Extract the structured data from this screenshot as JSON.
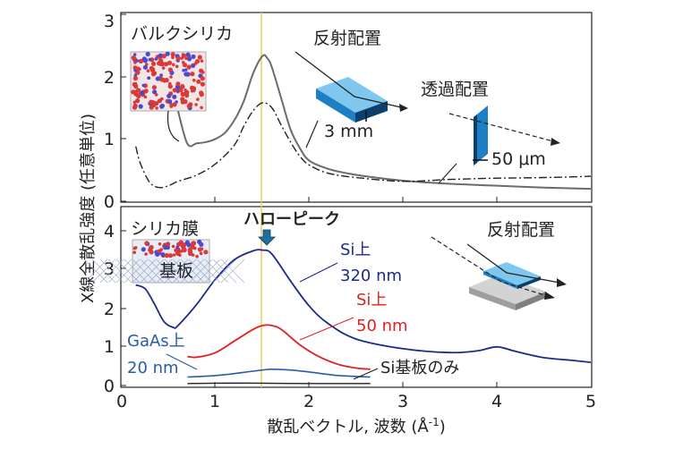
{
  "chart_data": [
    {
      "type": "line",
      "panel": "top",
      "ylim": [
        0,
        3
      ],
      "xlim": [
        0,
        5
      ],
      "yticks": [
        "0",
        "1",
        "2",
        "3"
      ],
      "grid": false,
      "series": [
        {
          "name": "バルクシリカ",
          "color": "#6b6b6b",
          "style": "solid",
          "x": [
            0.6,
            0.7,
            0.8,
            0.9,
            1.0,
            1.1,
            1.2,
            1.3,
            1.4,
            1.5,
            1.55,
            1.6,
            1.7,
            1.8,
            1.9,
            2.0,
            2.2,
            2.4,
            2.6,
            3.0,
            3.5,
            4.0,
            4.5,
            5.0
          ],
          "y": [
            1.45,
            0.92,
            0.93,
            0.95,
            1.0,
            1.1,
            1.3,
            1.6,
            2.05,
            2.33,
            2.3,
            2.15,
            1.65,
            1.15,
            0.85,
            0.65,
            0.52,
            0.45,
            0.4,
            0.33,
            0.28,
            0.25,
            0.22,
            0.2
          ]
        },
        {
          "name": "",
          "color": "#222222",
          "style": "dashdot",
          "x": [
            0.15,
            0.2,
            0.3,
            0.4,
            0.5,
            0.6,
            0.8,
            1.0,
            1.2,
            1.3,
            1.4,
            1.5,
            1.6,
            1.7,
            1.8,
            1.9,
            2.0,
            2.2,
            2.5,
            3.0,
            3.5,
            4.0,
            4.5,
            5.0
          ],
          "y": [
            0.88,
            0.6,
            0.3,
            0.22,
            0.25,
            0.32,
            0.42,
            0.6,
            0.9,
            1.2,
            1.45,
            1.58,
            1.5,
            1.22,
            0.95,
            0.72,
            0.58,
            0.45,
            0.38,
            0.32,
            0.35,
            0.37,
            0.38,
            0.4
          ]
        }
      ]
    },
    {
      "type": "line",
      "panel": "bottom",
      "ylim": [
        0,
        4.6
      ],
      "xlim": [
        0,
        5
      ],
      "yticks": [
        "0",
        "1",
        "2",
        "3",
        "4"
      ],
      "xticks": [
        "0",
        "1",
        "2",
        "3",
        "4",
        "5"
      ],
      "grid": false,
      "series": [
        {
          "name": "Si上 320 nm",
          "color": "#1c2a8c",
          "style": "solid",
          "x": [
            0.15,
            0.25,
            0.35,
            0.45,
            0.55,
            0.6,
            0.8,
            1.0,
            1.2,
            1.4,
            1.5,
            1.6,
            1.8,
            2.0,
            2.2,
            2.5,
            3.0,
            3.5,
            3.8,
            4.0,
            4.2,
            4.5,
            4.8,
            5.0
          ],
          "y": [
            2.6,
            2.5,
            2.1,
            1.65,
            1.5,
            1.55,
            2.1,
            2.75,
            3.25,
            3.48,
            3.5,
            3.4,
            2.7,
            2.05,
            1.6,
            1.2,
            0.95,
            0.85,
            0.9,
            1.0,
            0.88,
            0.72,
            0.65,
            0.6
          ]
        },
        {
          "name": "Si上 50 nm",
          "color": "#e02020",
          "style": "solid",
          "x": [
            0.7,
            0.8,
            1.0,
            1.2,
            1.4,
            1.5,
            1.6,
            1.7,
            1.9,
            2.1,
            2.3,
            2.5,
            2.65
          ],
          "y": [
            0.75,
            0.73,
            0.85,
            1.15,
            1.45,
            1.55,
            1.55,
            1.45,
            1.05,
            0.75,
            0.55,
            0.45,
            0.42
          ]
        },
        {
          "name": "GaAs上 20 nm",
          "color": "#2a5aa8",
          "style": "solid",
          "x": [
            0.7,
            0.9,
            1.1,
            1.3,
            1.5,
            1.6,
            1.8,
            2.0,
            2.3,
            2.65
          ],
          "y": [
            0.22,
            0.24,
            0.28,
            0.34,
            0.4,
            0.42,
            0.4,
            0.35,
            0.26,
            0.22
          ]
        },
        {
          "name": "Si基板のみ",
          "color": "#222222",
          "style": "solid",
          "x": [
            0.7,
            1.0,
            1.5,
            2.0,
            2.5,
            2.65
          ],
          "y": [
            0.05,
            0.06,
            0.06,
            0.05,
            0.05,
            0.05
          ]
        }
      ]
    }
  ],
  "labels": {
    "ylabel": "X線全散乱強度 (任意単位)",
    "xlabel": "散乱ベクトル, 波数 (Å",
    "xlabel_sup": "-1",
    "xlabel_close": ")",
    "bulk_silica": "バルクシリカ",
    "reflection_top": "反射配置",
    "transmission": "透過配置",
    "thickness_3mm": "3 mm",
    "thickness_50um": "50 μm",
    "silica_film": "シリカ膜",
    "substrate": "基板",
    "halo_peak": "ハローピーク",
    "reflection_bottom": "反射配置",
    "si320_a": "Si上",
    "si320_b": "320 nm",
    "si50_a": "Si上",
    "si50_b": "50 nm",
    "gaas_a": "GaAs上",
    "gaas_b": "20 nm",
    "si_only": "Si基板のみ"
  },
  "colors": {
    "peak_line": "#f2c94c",
    "block_top": "#7ec8f0",
    "block_side": "#1d7fc4",
    "block_dark": "#0c3f6b",
    "arrow_fill": "#1f6e9c",
    "substrate_grey": "#b8b8b8",
    "atom_red": "#d83a3a",
    "atom_blue": "#4a4ad0"
  }
}
